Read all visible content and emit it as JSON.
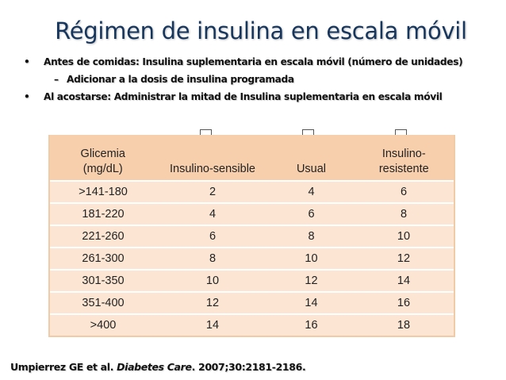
{
  "slide": {
    "title": "Régimen de insulina en escala móvil"
  },
  "bullets": [
    {
      "marker": "•",
      "text": "Antes de comidas: Insulina suplementaria en escala móvil (número de unidades)",
      "sub": [
        {
          "marker": "–",
          "text": "Adicionar a la dosis de insulina programada"
        }
      ]
    },
    {
      "marker": "•",
      "text": "Al acostarse: Administrar la mitad de Insulina suplementaria en escala móvil"
    }
  ],
  "table": {
    "headers": {
      "glucose_line1": "Glicemia",
      "glucose_line2": "(mg/dL)",
      "sensitive": "Insulino-sensible",
      "usual": "Usual",
      "resistant_line1": "Insulino-",
      "resistant_line2": "resistente"
    },
    "rows": [
      {
        "range": ">141-180",
        "sensitive": "2",
        "usual": "4",
        "resistant": "6"
      },
      {
        "range": "181-220",
        "sensitive": "4",
        "usual": "6",
        "resistant": "8"
      },
      {
        "range": "221-260",
        "sensitive": "6",
        "usual": "8",
        "resistant": "10"
      },
      {
        "range": "261-300",
        "sensitive": "8",
        "usual": "10",
        "resistant": "12"
      },
      {
        "range": "301-350",
        "sensitive": "10",
        "usual": "12",
        "resistant": "14"
      },
      {
        "range": "351-400",
        "sensitive": "12",
        "usual": "14",
        "resistant": "16"
      },
      {
        "range": ">400",
        "sensitive": "14",
        "usual": "16",
        "resistant": "18"
      }
    ]
  },
  "citation": {
    "authors": "Umpierrez GE et al. ",
    "journal": "Diabetes Care",
    "details": ". 2007;30:2181-2186."
  }
}
